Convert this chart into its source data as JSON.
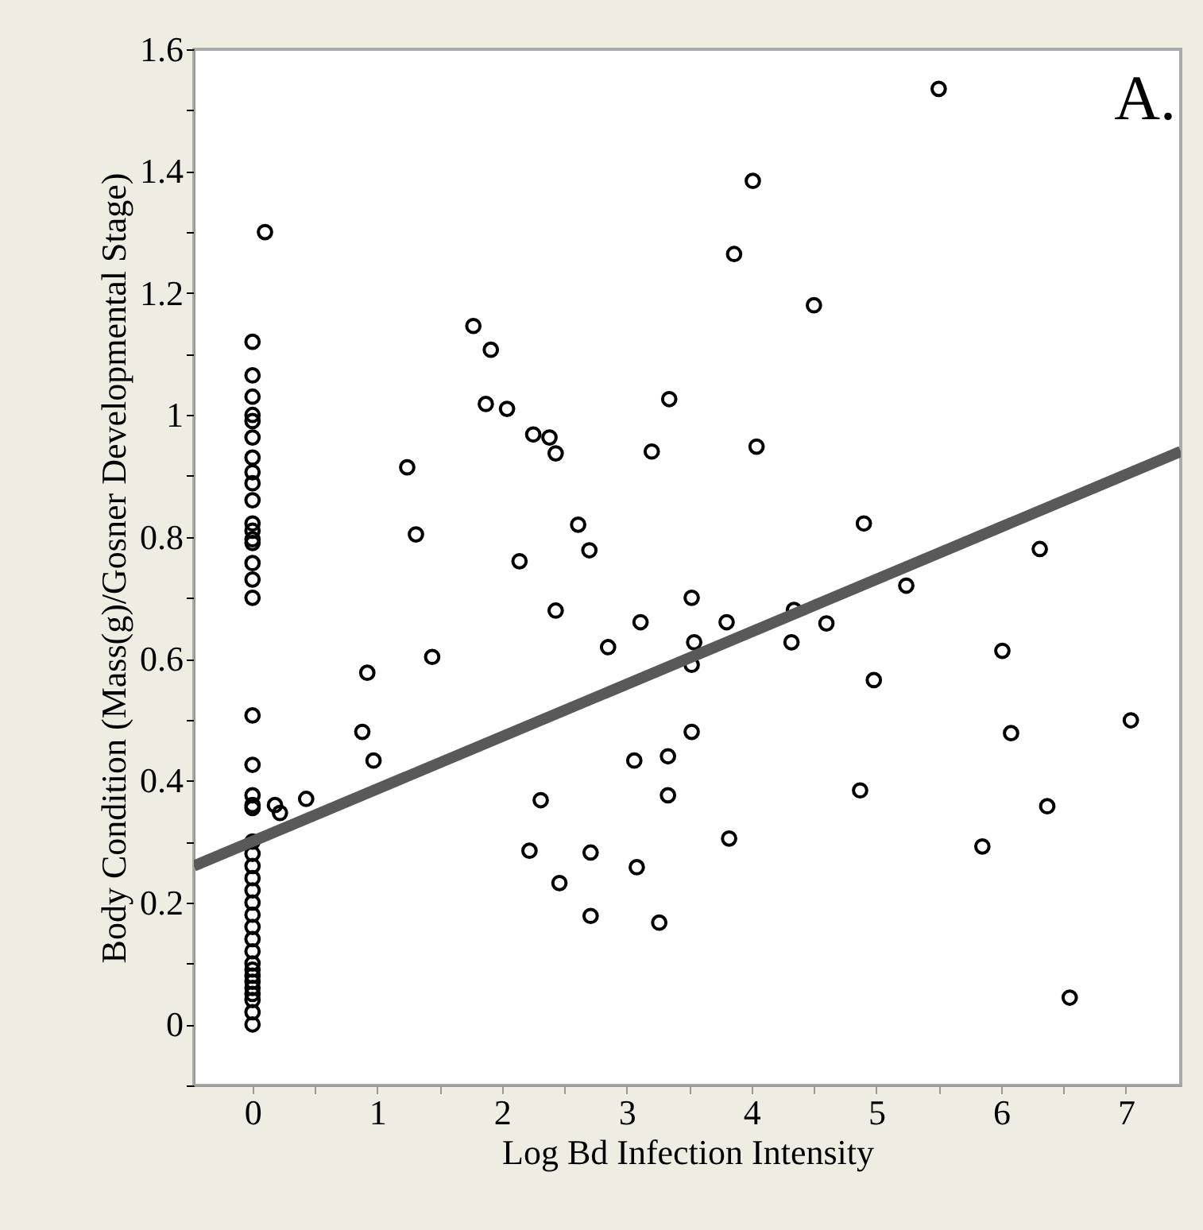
{
  "chart_data": {
    "type": "scatter",
    "xlabel": "Log Bd Infection Intensity",
    "ylabel": "Body Condition (Mass(g)/Gosner Developmental Stage)",
    "annotations": [
      "A."
    ],
    "xlim": [
      -0.47,
      7.44
    ],
    "ylim": [
      -0.1,
      1.6
    ],
    "xticks": [
      0,
      {
        "value": 0.5,
        "label": null
      },
      1,
      {
        "value": 1.5,
        "label": null
      },
      2,
      {
        "value": 2.5,
        "label": null
      },
      3,
      {
        "value": 3.5,
        "label": null
      },
      4,
      {
        "value": 4.5,
        "label": null
      },
      5,
      {
        "value": 5.5,
        "label": null
      },
      6,
      {
        "value": 6.5,
        "label": null
      },
      7
    ],
    "yticks": [
      {
        "value": -0.1,
        "label": null
      },
      0,
      {
        "value": 0.1,
        "label": null
      },
      0.2,
      {
        "value": 0.3,
        "label": null
      },
      0.4,
      {
        "value": 0.5,
        "label": null
      },
      0.6,
      {
        "value": 0.7,
        "label": null
      },
      0.8,
      {
        "value": 0.9,
        "label": null
      },
      1,
      {
        "value": 1.1,
        "label": null
      },
      1.2,
      {
        "value": 1.3,
        "label": null
      },
      1.4,
      {
        "value": 1.5,
        "label": null
      },
      1.6
    ],
    "grid": false,
    "marker": "circle",
    "series": [
      {
        "color": "#000000",
        "x": [
          0,
          0,
          0,
          0,
          0,
          0,
          0,
          0,
          0,
          0,
          0,
          0,
          0,
          0,
          0,
          0,
          0,
          0,
          0,
          0,
          0,
          0,
          0,
          0,
          0,
          0,
          0,
          0,
          0,
          0,
          0,
          0,
          0,
          0,
          0,
          0,
          0,
          0,
          0,
          0,
          0,
          0.1,
          0.18,
          0.22,
          0.43,
          1.24,
          1.31,
          1.77,
          1.91,
          1.87,
          2.04,
          2.25,
          2.38,
          2.43,
          2.61,
          2.7,
          2.14,
          3.2,
          3.34,
          5.5,
          4.01,
          3.86,
          4.5,
          4.04,
          4.9,
          6.31,
          0.92,
          1.44,
          0.88,
          0.97,
          2.43,
          3.11,
          2.85,
          3.52,
          3.54,
          3.52,
          3.52,
          3.06,
          3.33,
          3.33,
          2.31,
          2.22,
          2.71,
          2.46,
          3.08,
          2.71,
          3.26,
          3.8,
          4.34,
          4.32,
          4.6,
          5.24,
          6.01,
          4.98,
          6.08,
          7.04,
          4.87,
          3.82,
          5.85,
          6.37,
          6.55
        ],
        "values": [
          1.12,
          1.065,
          1.03,
          1.0,
          0.99,
          0.963,
          0.93,
          0.906,
          0.888,
          0.86,
          0.822,
          0.81,
          0.796,
          0.79,
          0.757,
          0.73,
          0.7,
          0.507,
          0.426,
          0.376,
          0.36,
          0.355,
          0.3,
          0.28,
          0.26,
          0.24,
          0.22,
          0.2,
          0.18,
          0.16,
          0.14,
          0.12,
          0.1,
          0.09,
          0.08,
          0.07,
          0.06,
          0.05,
          0.04,
          0.02,
          0.0,
          1.3,
          0.36,
          0.347,
          0.37,
          0.914,
          0.804,
          1.146,
          1.107,
          1.018,
          1.01,
          0.968,
          0.963,
          0.937,
          0.82,
          0.778,
          0.76,
          0.94,
          1.026,
          1.535,
          1.384,
          1.264,
          1.18,
          0.948,
          0.822,
          0.78,
          0.577,
          0.603,
          0.48,
          0.433,
          0.679,
          0.66,
          0.619,
          0.7,
          0.627,
          0.59,
          0.48,
          0.433,
          0.44,
          0.376,
          0.368,
          0.285,
          0.282,
          0.232,
          0.258,
          0.178,
          0.167,
          0.66,
          0.68,
          0.627,
          0.658,
          0.72,
          0.613,
          0.565,
          0.478,
          0.499,
          0.384,
          0.305,
          0.292,
          0.358,
          0.044
        ]
      },
      {
        "type": "line",
        "color": "#595959",
        "marker": "none",
        "line_style": "solid",
        "x": [
          -0.47,
          7.44
        ],
        "values": [
          0.26,
          0.94
        ]
      }
    ]
  }
}
